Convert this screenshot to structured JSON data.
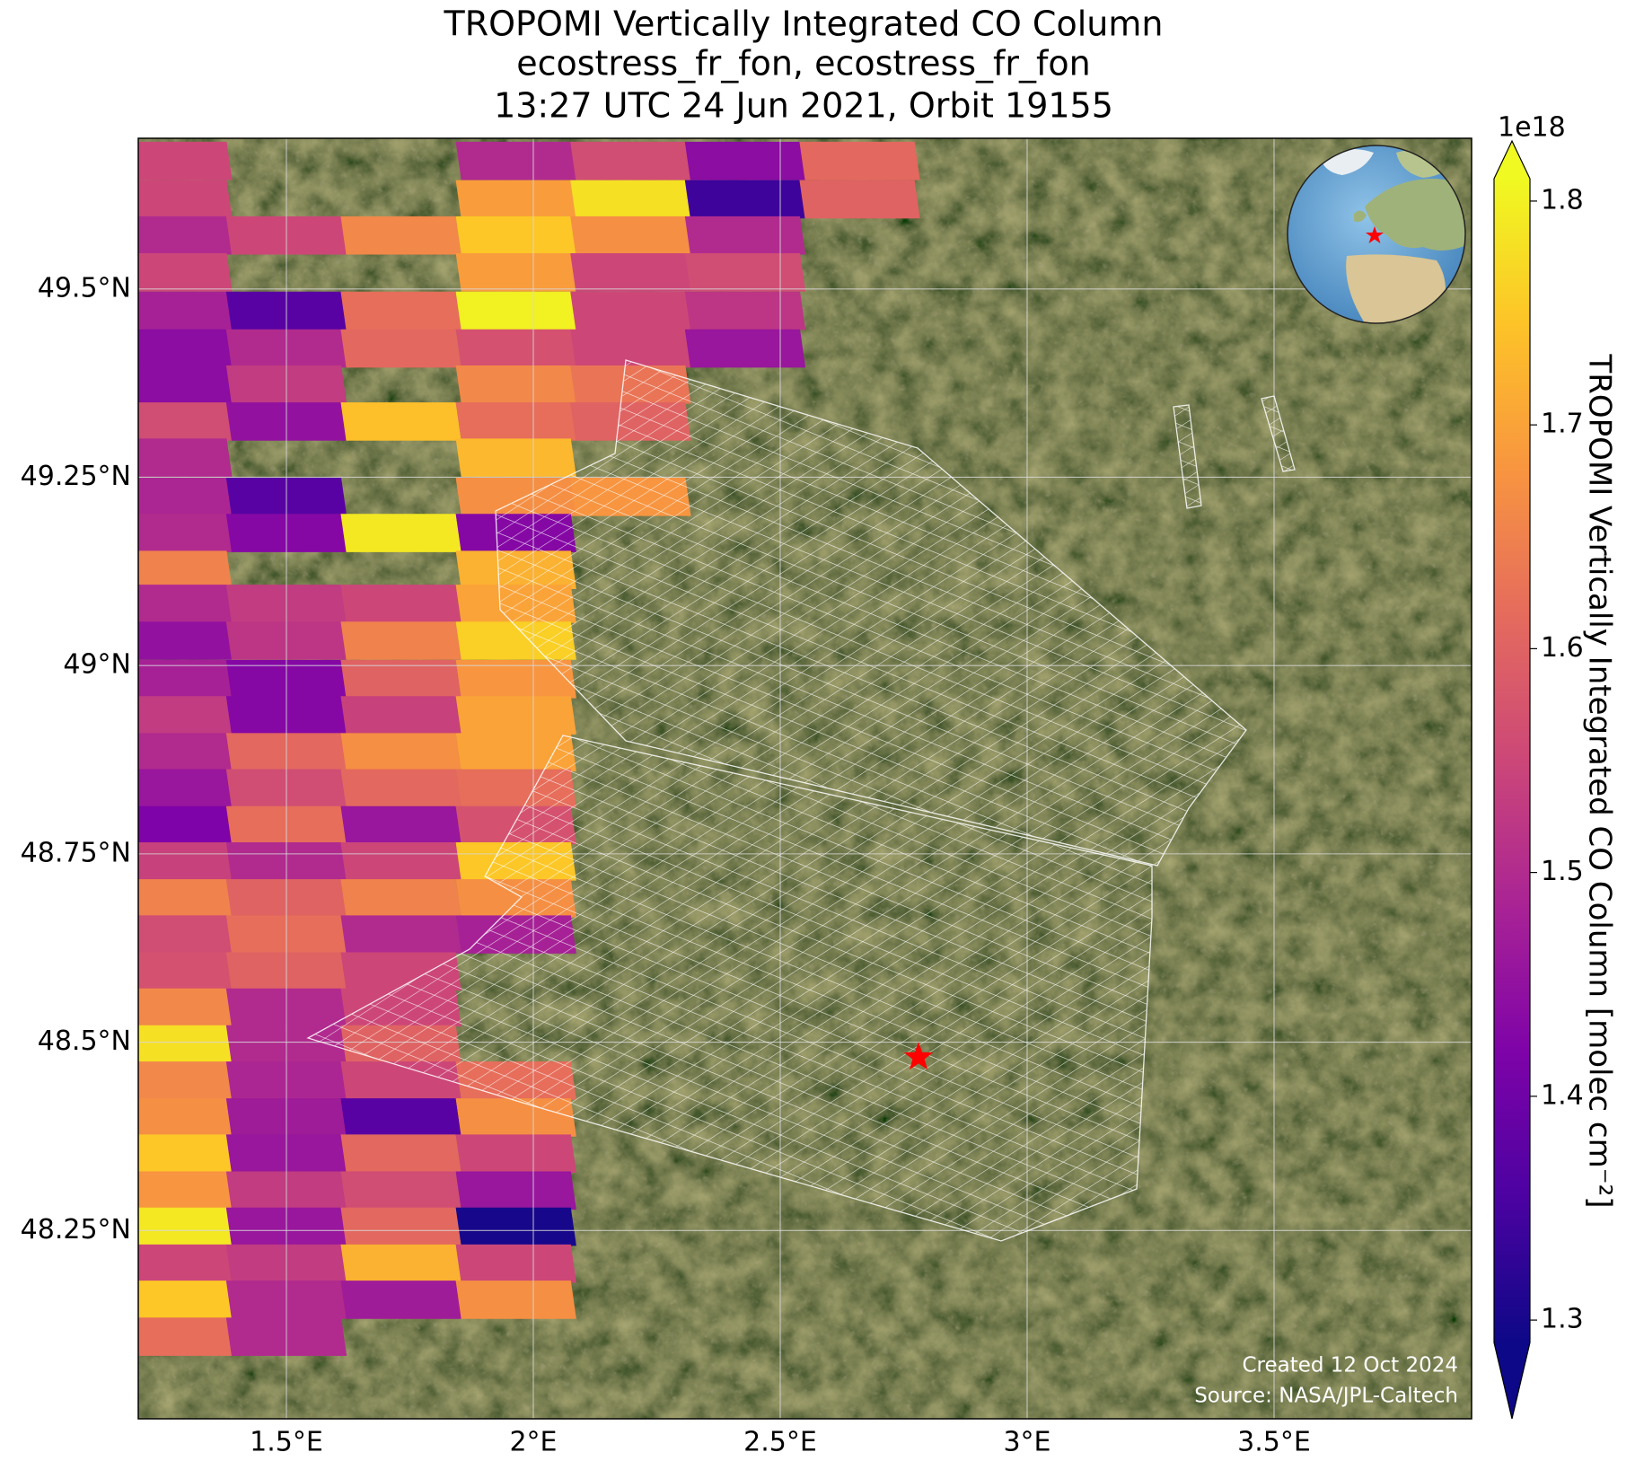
{
  "chart_data": {
    "type": "map",
    "title": [
      "TROPOMI Vertically Integrated CO Column",
      "ecostress_fr_fon, ecostress_fr_fon",
      "13:27 UTC 24 Jun 2021, Orbit 19155"
    ],
    "xlim": [
      1.2,
      3.9
    ],
    "ylim": [
      48.0,
      49.7
    ],
    "xticks": [
      {
        "value": 1.5,
        "label": "1.5°E"
      },
      {
        "value": 2,
        "label": "2°E"
      },
      {
        "value": 2.5,
        "label": "2.5°E"
      },
      {
        "value": 3,
        "label": "3°E"
      },
      {
        "value": 3.5,
        "label": "3.5°E"
      }
    ],
    "yticks": [
      {
        "value": 48.25,
        "label": "48.25°N"
      },
      {
        "value": 48.5,
        "label": "48.5°N"
      },
      {
        "value": 48.75,
        "label": "48.75°N"
      },
      {
        "value": 49,
        "label": "49°N"
      },
      {
        "value": 49.25,
        "label": "49.25°N"
      },
      {
        "value": 49.5,
        "label": "49.5°N"
      }
    ],
    "grid": true,
    "colormap": "plasma",
    "clim": [
      1.29,
      1.81
    ],
    "colorbar_ticks": [
      1.3,
      1.4,
      1.5,
      1.6,
      1.7,
      1.8
    ],
    "colorbar_offset": "1e18",
    "colorbar_label": "TROPOMI Vertically Integrated CO Column [molec cm⁻²]",
    "columns": [
      1.268,
      1.5,
      1.732,
      1.965,
      2.197,
      2.429,
      2.661
    ],
    "rows": [
      {
        "lat": 49.67,
        "values": [
          1.55,
          null,
          null,
          1.5,
          1.56,
          1.44,
          1.61
        ]
      },
      {
        "lat": 49.619,
        "values": [
          1.55,
          null,
          null,
          1.69,
          1.78,
          1.34,
          1.6
        ]
      },
      {
        "lat": 49.571,
        "values": [
          1.5,
          1.55,
          1.66,
          1.75,
          1.67,
          1.5
        ]
      },
      {
        "lat": 49.522,
        "values": [
          1.55,
          null,
          null,
          1.69,
          1.55,
          1.56
        ]
      },
      {
        "lat": 49.471,
        "values": [
          1.48,
          1.37,
          1.62,
          1.8,
          1.55,
          1.52
        ]
      },
      {
        "lat": 49.421,
        "values": [
          1.44,
          1.5,
          1.61,
          1.57,
          1.55,
          1.46
        ]
      },
      {
        "lat": 49.373,
        "values": [
          1.44,
          1.53,
          null,
          1.66,
          1.63
        ]
      },
      {
        "lat": 49.324,
        "values": [
          1.56,
          1.45,
          1.74,
          1.62,
          1.6
        ]
      },
      {
        "lat": 49.276,
        "values": [
          1.5,
          null,
          null,
          1.73
        ]
      },
      {
        "lat": 49.224,
        "values": [
          1.49,
          1.37,
          null,
          1.67,
          1.68
        ]
      },
      {
        "lat": 49.176,
        "values": [
          1.5,
          1.43,
          1.79,
          1.43
        ]
      },
      {
        "lat": 49.127,
        "values": [
          1.65,
          null,
          null,
          1.72
        ]
      },
      {
        "lat": 49.082,
        "values": [
          1.5,
          1.53,
          1.55,
          1.7
        ]
      },
      {
        "lat": 49.033,
        "values": [
          1.45,
          1.52,
          1.65,
          1.76
        ]
      },
      {
        "lat": 48.982,
        "values": [
          1.48,
          1.43,
          1.6,
          1.68
        ]
      },
      {
        "lat": 48.934,
        "values": [
          1.53,
          1.43,
          1.54,
          1.7
        ]
      },
      {
        "lat": 48.885,
        "values": [
          1.5,
          1.61,
          1.67,
          1.7
        ]
      },
      {
        "lat": 48.837,
        "values": [
          1.46,
          1.56,
          1.61,
          1.62
        ]
      },
      {
        "lat": 48.788,
        "values": [
          1.42,
          1.62,
          1.46,
          1.57
        ]
      },
      {
        "lat": 48.74,
        "values": [
          1.54,
          1.5,
          1.55,
          1.75
        ]
      },
      {
        "lat": 48.691,
        "values": [
          1.65,
          1.6,
          1.65,
          1.67
        ]
      },
      {
        "lat": 48.643,
        "values": [
          1.56,
          1.62,
          1.5,
          1.48
        ]
      },
      {
        "lat": 48.594,
        "values": [
          1.57,
          1.6,
          1.55
        ]
      },
      {
        "lat": 48.546,
        "values": [
          1.66,
          1.5,
          1.55
        ]
      },
      {
        "lat": 48.497,
        "values": [
          1.78,
          1.5,
          1.6
        ]
      },
      {
        "lat": 48.449,
        "values": [
          1.66,
          1.49,
          1.55,
          1.62
        ]
      },
      {
        "lat": 48.4,
        "values": [
          1.67,
          1.47,
          1.37,
          1.67
        ]
      },
      {
        "lat": 48.352,
        "values": [
          1.75,
          1.46,
          1.61,
          1.55
        ]
      },
      {
        "lat": 48.303,
        "values": [
          1.68,
          1.53,
          1.56,
          1.46
        ]
      },
      {
        "lat": 48.255,
        "values": [
          1.79,
          1.46,
          1.61,
          1.3
        ]
      },
      {
        "lat": 48.206,
        "values": [
          1.55,
          1.53,
          1.72,
          1.55
        ]
      },
      {
        "lat": 48.158,
        "values": [
          1.75,
          1.5,
          1.47,
          1.67
        ]
      },
      {
        "lat": 48.109,
        "values": [
          1.62,
          1.5
        ]
      }
    ],
    "marker": {
      "lon": 2.78,
      "lat": 48.48,
      "color": "#ff0000"
    },
    "annotations": [
      "Created 12 Oct 2024",
      "Source: NASA/JPL-Caltech"
    ]
  }
}
